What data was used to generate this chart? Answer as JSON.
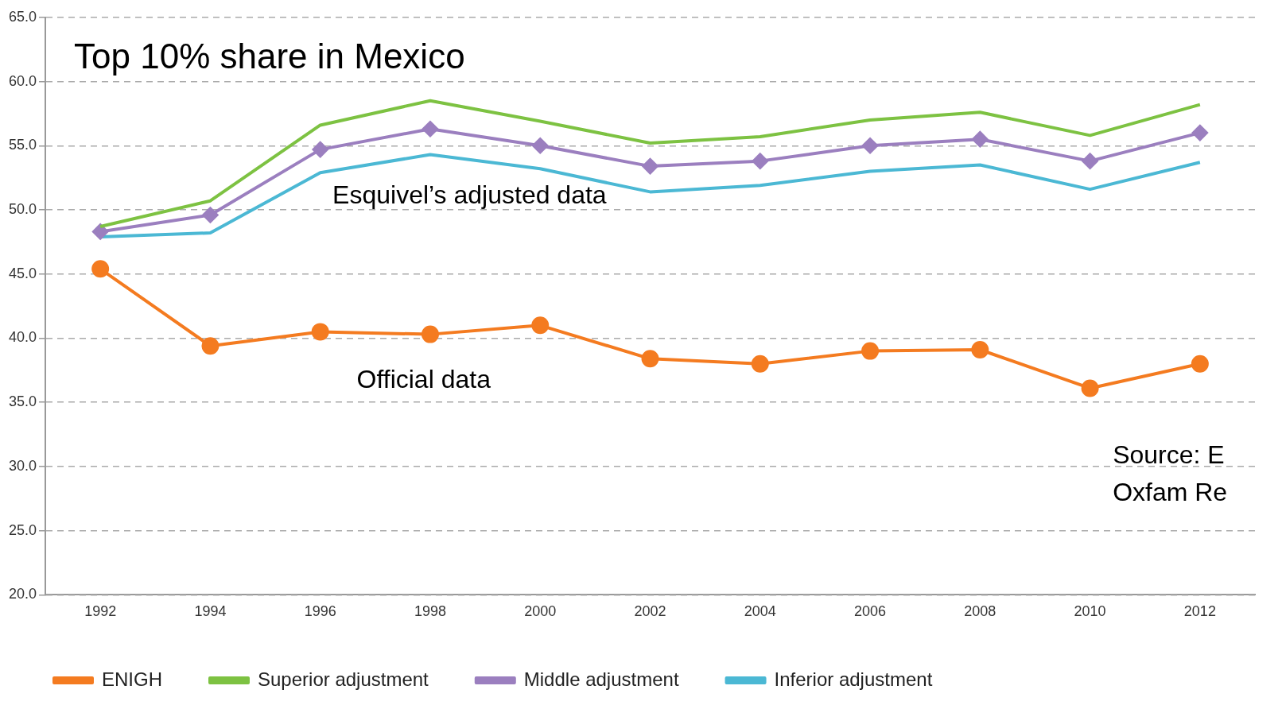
{
  "chart_data": {
    "type": "line",
    "title": "Top 10% share in Mexico",
    "categories": [
      "1992",
      "1994",
      "1996",
      "1998",
      "2000",
      "2002",
      "2004",
      "2006",
      "2008",
      "2010",
      "2012"
    ],
    "series": [
      {
        "name": "ENIGH",
        "color": "#f47b20",
        "marker": "circle",
        "values": [
          45.4,
          39.4,
          40.5,
          40.3,
          41.0,
          38.4,
          38.0,
          39.0,
          39.1,
          36.1,
          38.0
        ]
      },
      {
        "name": "Superior adjustment",
        "color": "#7dc242",
        "marker": "none",
        "values": [
          48.7,
          50.7,
          56.6,
          58.5,
          56.9,
          55.2,
          55.7,
          57.0,
          57.6,
          55.8,
          58.2
        ]
      },
      {
        "name": "Middle adjustment",
        "color": "#9b7fbf",
        "marker": "diamond",
        "values": [
          48.3,
          49.6,
          54.7,
          56.3,
          55.0,
          53.4,
          53.8,
          55.0,
          55.5,
          53.8,
          56.0
        ]
      },
      {
        "name": "Inferior adjustment",
        "color": "#4bb8d4",
        "marker": "none",
        "values": [
          47.9,
          48.2,
          52.9,
          54.3,
          53.2,
          51.4,
          51.9,
          53.0,
          53.5,
          51.6,
          53.7
        ]
      }
    ],
    "ylim": [
      20,
      65
    ],
    "yticks": [
      {
        "value": 20,
        "label": "20.0"
      },
      {
        "value": 25,
        "label": "25.0"
      },
      {
        "value": 30,
        "label": "30.0"
      },
      {
        "value": 35,
        "label": "35.0"
      },
      {
        "value": 40,
        "label": "40.0"
      },
      {
        "value": 45,
        "label": "45.0"
      },
      {
        "value": 50,
        "label": "50.0"
      },
      {
        "value": 55,
        "label": "55.0"
      },
      {
        "value": 60,
        "label": "60.0"
      },
      {
        "value": 65,
        "label": "65.0"
      }
    ],
    "grid": "y",
    "legend": "bottom",
    "annotations": [
      "Esquivel’s adjusted data",
      "Official data",
      "Source: E",
      "Oxfam Re"
    ]
  }
}
